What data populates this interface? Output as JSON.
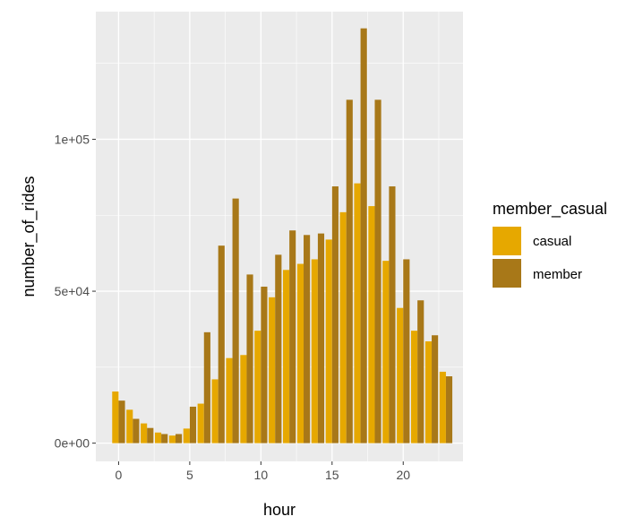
{
  "chart_data": {
    "type": "bar",
    "xlabel": "hour",
    "ylabel": "number_of_rides",
    "x": [
      0,
      1,
      2,
      3,
      4,
      5,
      6,
      7,
      8,
      9,
      10,
      11,
      12,
      13,
      14,
      15,
      16,
      17,
      18,
      19,
      20,
      21,
      22,
      23
    ],
    "x_ticks": [
      0,
      5,
      10,
      15,
      20
    ],
    "x_tick_labels": [
      "0",
      "5",
      "10",
      "15",
      "20"
    ],
    "xlim": [
      -1.6,
      24.2
    ],
    "ylim": [
      -6000,
      142000
    ],
    "y_ticks": [
      0,
      50000,
      100000
    ],
    "y_tick_labels": [
      "0e+00",
      "5e+04",
      "1e+05"
    ],
    "grid": true,
    "legend": {
      "title": "member_casual",
      "position": "right",
      "entries": [
        "casual",
        "member"
      ]
    },
    "series": [
      {
        "name": "casual",
        "color": "#E6A800",
        "values": [
          17000,
          11000,
          6500,
          3500,
          2500,
          4800,
          13000,
          21000,
          28000,
          29000,
          37000,
          48000,
          57000,
          59000,
          60500,
          67000,
          76000,
          85500,
          78000,
          60000,
          44500,
          37000,
          33500,
          23500
        ]
      },
      {
        "name": "member",
        "color": "#A87818",
        "values": [
          14000,
          8000,
          5000,
          3000,
          3000,
          12000,
          36500,
          65000,
          80500,
          55500,
          51500,
          62000,
          70000,
          68500,
          69000,
          84500,
          113000,
          136500,
          113000,
          84500,
          60500,
          47000,
          35500,
          22000
        ]
      }
    ]
  }
}
